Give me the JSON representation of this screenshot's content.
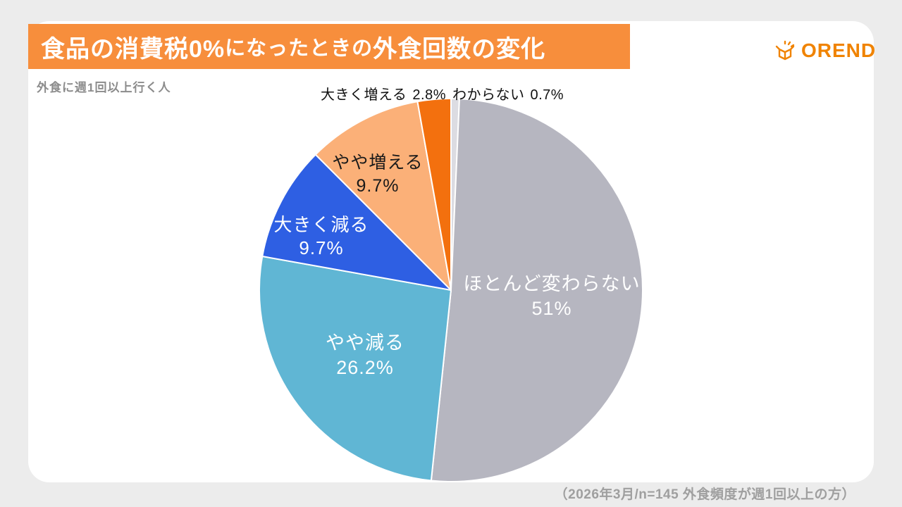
{
  "page": {
    "background_color": "#ececec",
    "card_color": "#ffffff"
  },
  "header": {
    "title_part1": "食品の消費税0%",
    "title_part2": "になったときの",
    "title_part3": "外食回数の変化",
    "banner_color": "#f78e3c",
    "logo_text": "OREND",
    "logo_color": "#f08300"
  },
  "subtitle": "外食に週1回以上行く人",
  "footnote": "（2026年3月/n=145 外食頻度が週1回以上の方）",
  "chart_data": {
    "type": "pie",
    "title": "食品の消費税0%になったときの外食回数の変化",
    "subtitle": "外食に週1回以上行く人",
    "start_angle_deg": -90,
    "direction": "clockwise",
    "stroke_color": "#ffffff",
    "slices": [
      {
        "label": "わからない",
        "value": 0.7,
        "display": "0.7%",
        "color": "#dcdce2",
        "label_style": "outside"
      },
      {
        "label": "ほとんど変わらない",
        "value": 51,
        "display": "51%",
        "color": "#b6b6c0",
        "label_style": "inside-white"
      },
      {
        "label": "やや減る",
        "value": 26.2,
        "display": "26.2%",
        "color": "#60b6d4",
        "label_style": "inside-white"
      },
      {
        "label": "大きく減る",
        "value": 9.7,
        "display": "9.7%",
        "color": "#2e5fe3",
        "label_style": "inside-white"
      },
      {
        "label": "やや増える",
        "value": 9.7,
        "display": "9.7%",
        "color": "#fbb078",
        "label_style": "inside-black"
      },
      {
        "label": "大きく増える",
        "value": 2.8,
        "display": "2.8%",
        "color": "#f3700e",
        "label_style": "outside"
      }
    ]
  }
}
